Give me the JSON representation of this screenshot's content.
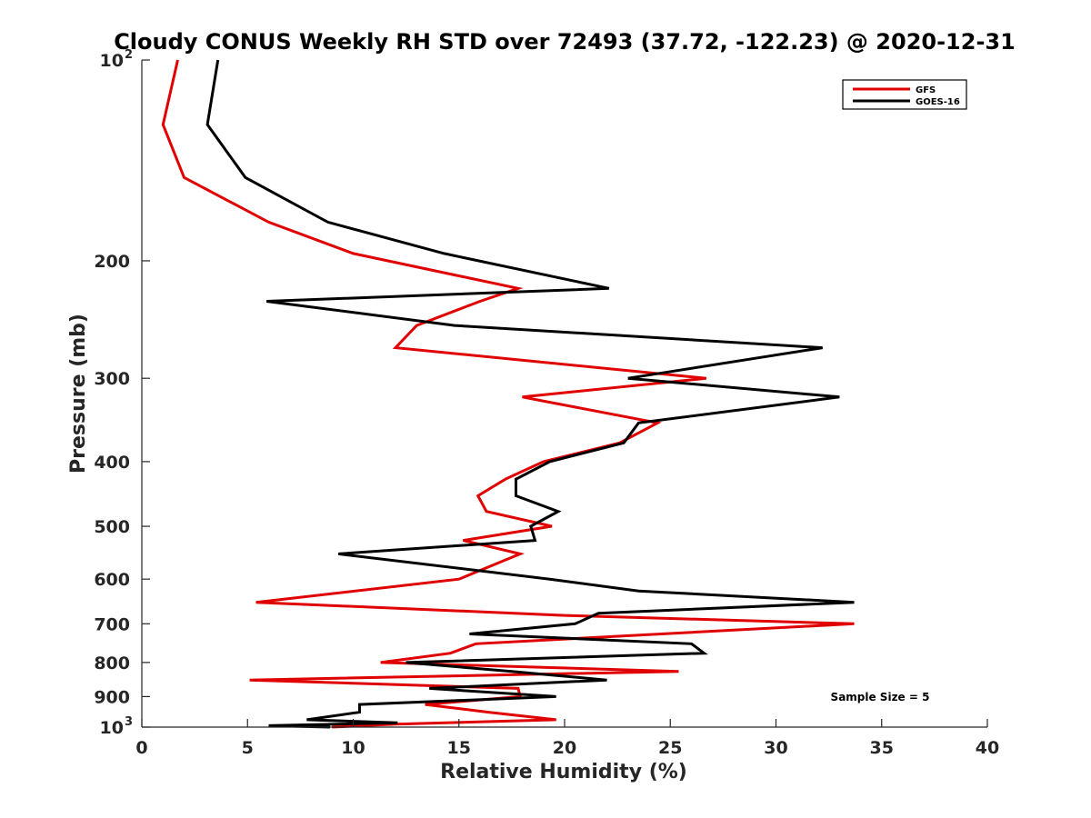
{
  "chart_data": {
    "type": "line",
    "title": "Cloudy CONUS Weekly RH STD over 72493 (37.72, -122.23) @ 2020-12-31",
    "xlabel": "Relative Humidity (%)",
    "ylabel": "Pressure (mb)",
    "xlim": [
      0,
      40
    ],
    "ylim": [
      100,
      1000
    ],
    "y_scale": "log",
    "y_reversed": true,
    "x_ticks": [
      "0",
      "5",
      "10",
      "15",
      "20",
      "25",
      "30",
      "35",
      "40"
    ],
    "y_ticks": [
      {
        "value": 100,
        "label": "10",
        "sup": "2"
      },
      {
        "value": 200,
        "label": "200",
        "sup": ""
      },
      {
        "value": 300,
        "label": "300",
        "sup": ""
      },
      {
        "value": 400,
        "label": "400",
        "sup": ""
      },
      {
        "value": 500,
        "label": "500",
        "sup": ""
      },
      {
        "value": 600,
        "label": "600",
        "sup": ""
      },
      {
        "value": 700,
        "label": "700",
        "sup": ""
      },
      {
        "value": 800,
        "label": "800",
        "sup": ""
      },
      {
        "value": 900,
        "label": "900",
        "sup": ""
      },
      {
        "value": 1000,
        "label": "10",
        "sup": "3"
      }
    ],
    "grid": false,
    "legend_position": "top-right",
    "annotation": "Sample Size = 5",
    "series": [
      {
        "name": "GFS",
        "color": "#e00000",
        "points": [
          [
            1.7,
            100
          ],
          [
            1.0,
            125
          ],
          [
            2.0,
            150
          ],
          [
            6.0,
            175
          ],
          [
            10.0,
            195
          ],
          [
            17.8,
            220
          ],
          [
            16.0,
            230
          ],
          [
            13.0,
            250
          ],
          [
            12.0,
            270
          ],
          [
            26.7,
            300
          ],
          [
            18.0,
            320
          ],
          [
            24.4,
            350
          ],
          [
            22.6,
            375
          ],
          [
            19.0,
            400
          ],
          [
            17.2,
            425
          ],
          [
            15.9,
            450
          ],
          [
            16.3,
            475
          ],
          [
            19.4,
            500
          ],
          [
            15.2,
            525
          ],
          [
            17.9,
            550
          ],
          [
            15.0,
            600
          ],
          [
            5.4,
            650
          ],
          [
            20.0,
            680
          ],
          [
            33.7,
            700
          ],
          [
            15.8,
            750
          ],
          [
            14.6,
            775
          ],
          [
            11.3,
            800
          ],
          [
            25.4,
            825
          ],
          [
            5.1,
            850
          ],
          [
            17.8,
            875
          ],
          [
            17.9,
            900
          ],
          [
            13.4,
            925
          ],
          [
            16.4,
            950
          ],
          [
            19.6,
            975
          ],
          [
            12.0,
            990
          ],
          [
            9.0,
            1000
          ]
        ]
      },
      {
        "name": "GOES-16",
        "color": "#000000",
        "points": [
          [
            3.6,
            100
          ],
          [
            3.1,
            125
          ],
          [
            4.9,
            150
          ],
          [
            8.8,
            175
          ],
          [
            14.3,
            195
          ],
          [
            22.1,
            220
          ],
          [
            5.9,
            230
          ],
          [
            14.8,
            250
          ],
          [
            32.2,
            270
          ],
          [
            23.0,
            300
          ],
          [
            33.0,
            320
          ],
          [
            23.5,
            350
          ],
          [
            22.8,
            375
          ],
          [
            19.3,
            400
          ],
          [
            17.7,
            425
          ],
          [
            17.7,
            450
          ],
          [
            19.7,
            475
          ],
          [
            18.4,
            500
          ],
          [
            18.6,
            525
          ],
          [
            9.3,
            550
          ],
          [
            19.3,
            600
          ],
          [
            23.5,
            625
          ],
          [
            33.7,
            650
          ],
          [
            21.6,
            675
          ],
          [
            20.5,
            700
          ],
          [
            15.5,
            725
          ],
          [
            26.0,
            750
          ],
          [
            26.6,
            775
          ],
          [
            12.5,
            800
          ],
          [
            17.5,
            825
          ],
          [
            22.0,
            850
          ],
          [
            13.6,
            875
          ],
          [
            19.6,
            900
          ],
          [
            10.3,
            925
          ],
          [
            10.3,
            950
          ],
          [
            7.8,
            975
          ],
          [
            12.1,
            985
          ],
          [
            6.0,
            995
          ],
          [
            8.9,
            1000
          ]
        ]
      }
    ]
  }
}
